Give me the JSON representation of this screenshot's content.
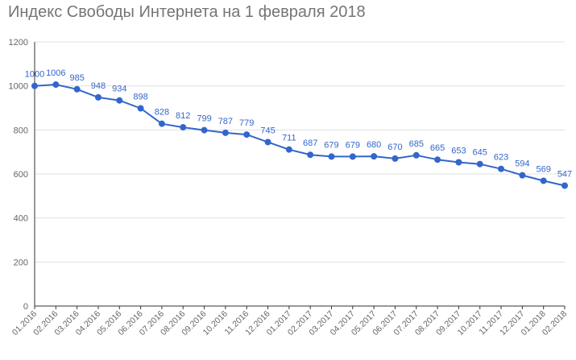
{
  "chart_data": {
    "type": "line",
    "title": "Индекс Свободы Интернета на 1 февраля 2018",
    "xlabel": "",
    "ylabel": "",
    "categories": [
      "01.2016",
      "02.2016",
      "03.2016",
      "04.2016",
      "05.2016",
      "06.2016",
      "07.2016",
      "08.2016",
      "09.2016",
      "10.2016",
      "11.2016",
      "12.2016",
      "01.2017",
      "02.2017",
      "03.2017",
      "04.2017",
      "05.2017",
      "06.2017",
      "07.2017",
      "08.2017",
      "09.2017",
      "10.2017",
      "11.2017",
      "12.2017",
      "01.2018",
      "02.2018"
    ],
    "series": [
      {
        "values": [
          1000,
          1006,
          985,
          948,
          934,
          898,
          828,
          812,
          799,
          787,
          779,
          745,
          711,
          687,
          679,
          679,
          680,
          670,
          685,
          665,
          653,
          645,
          623,
          594,
          569,
          547
        ]
      }
    ],
    "ylim": [
      0,
      1200
    ],
    "yticks": [
      0,
      200,
      400,
      600,
      800,
      1000,
      1200
    ],
    "grid": true,
    "legend": "none",
    "data_labels": true,
    "colors": {
      "line": "#3366cc",
      "label": "#3366cc",
      "grid": "#e0e0e0",
      "axis": "#333333",
      "tick_text": "#666666",
      "title": "#757575"
    }
  }
}
